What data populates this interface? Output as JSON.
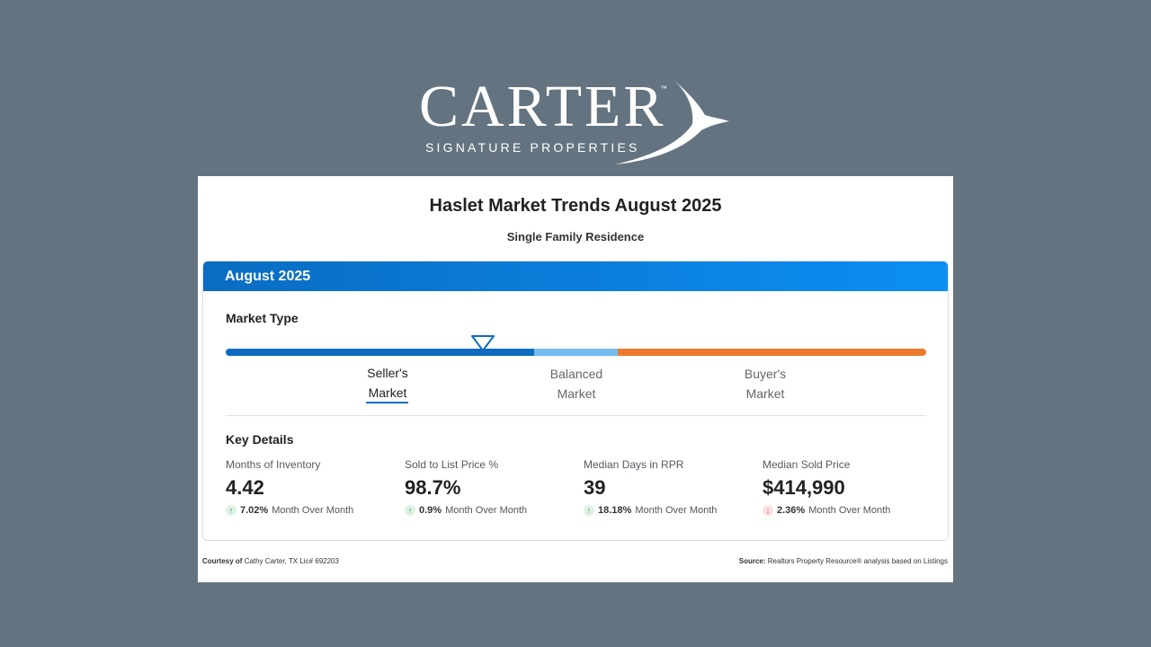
{
  "logo": {
    "wordmark": "CARTER",
    "trademark": "™",
    "tagline": "SIGNATURE PROPERTIES",
    "icon": "bird-swoosh-icon"
  },
  "report": {
    "title": "Haslet Market Trends August 2025",
    "subtitle": "Single Family Residence",
    "period_label": "August 2025"
  },
  "market_type": {
    "heading": "Market Type",
    "marker_icon": "triangle-down-icon",
    "categories": [
      {
        "line1": "Seller's",
        "line2": "Market",
        "active": true
      },
      {
        "line1": "Balanced",
        "line2": "Market",
        "active": false
      },
      {
        "line1": "Buyer's",
        "line2": "Market",
        "active": false
      }
    ],
    "colors": {
      "seller": "#0d6cc0",
      "balanced": "#74bcf2",
      "buyer": "#ec7a2c"
    }
  },
  "key_details": {
    "heading": "Key Details",
    "metrics": [
      {
        "label": "Months of Inventory",
        "value": "4.42",
        "change": "7.02%",
        "direction": "up",
        "period": "Month Over Month"
      },
      {
        "label": "Sold to List Price %",
        "value": "98.7%",
        "change": "0.9%",
        "direction": "up",
        "period": "Month Over Month"
      },
      {
        "label": "Median Days in RPR",
        "value": "39",
        "change": "18.18%",
        "direction": "up",
        "period": "Month Over Month"
      },
      {
        "label": "Median Sold Price",
        "value": "$414,990",
        "change": "2.36%",
        "direction": "down",
        "period": "Month Over Month"
      }
    ]
  },
  "footer": {
    "courtesy_label": "Courtesy of",
    "courtesy_text": "Cathy Carter, TX Lic# 692203",
    "source_label": "Source:",
    "source_text": "Realtors Property Resource® analysis based on Listings"
  }
}
